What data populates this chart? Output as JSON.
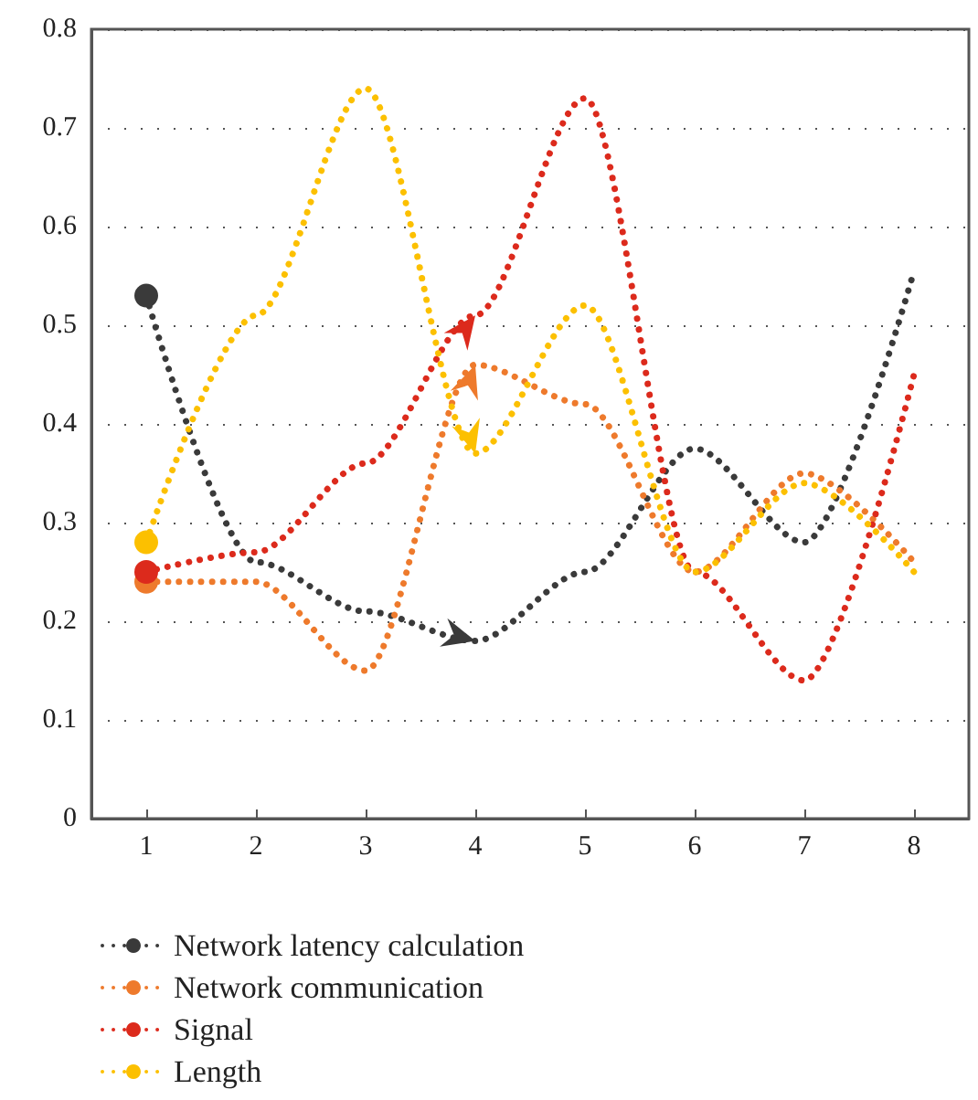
{
  "chart_data": {
    "type": "line",
    "x": [
      1,
      2,
      3,
      4,
      5,
      6,
      7,
      8
    ],
    "xlim": [
      0.5,
      8.5
    ],
    "xticks": [
      1,
      2,
      3,
      4,
      5,
      6,
      7,
      8
    ],
    "ylim": [
      0,
      0.8
    ],
    "yticks": [
      0,
      0.1,
      0.2,
      0.3,
      0.4,
      0.5,
      0.6,
      0.7,
      0.8
    ],
    "grid": "y",
    "legend": "bottom left",
    "line_style": "dotted",
    "series": [
      {
        "name": "Network latency calculation",
        "color": "#3a3a3a",
        "values": [
          0.53,
          0.26,
          0.21,
          0.18,
          0.25,
          0.375,
          0.28,
          0.555
        ]
      },
      {
        "name": "Network communication",
        "color": "#ee7a2c",
        "values": [
          0.24,
          0.24,
          0.15,
          0.46,
          0.42,
          0.25,
          0.35,
          0.26
        ]
      },
      {
        "name": "Signal",
        "color": "#dc2a1c",
        "values": [
          0.25,
          0.27,
          0.36,
          0.51,
          0.73,
          0.25,
          0.14,
          0.45
        ]
      },
      {
        "name": "Length",
        "color": "#fcc000",
        "values": [
          0.28,
          0.51,
          0.74,
          0.37,
          0.52,
          0.25,
          0.34,
          0.25
        ]
      }
    ]
  }
}
